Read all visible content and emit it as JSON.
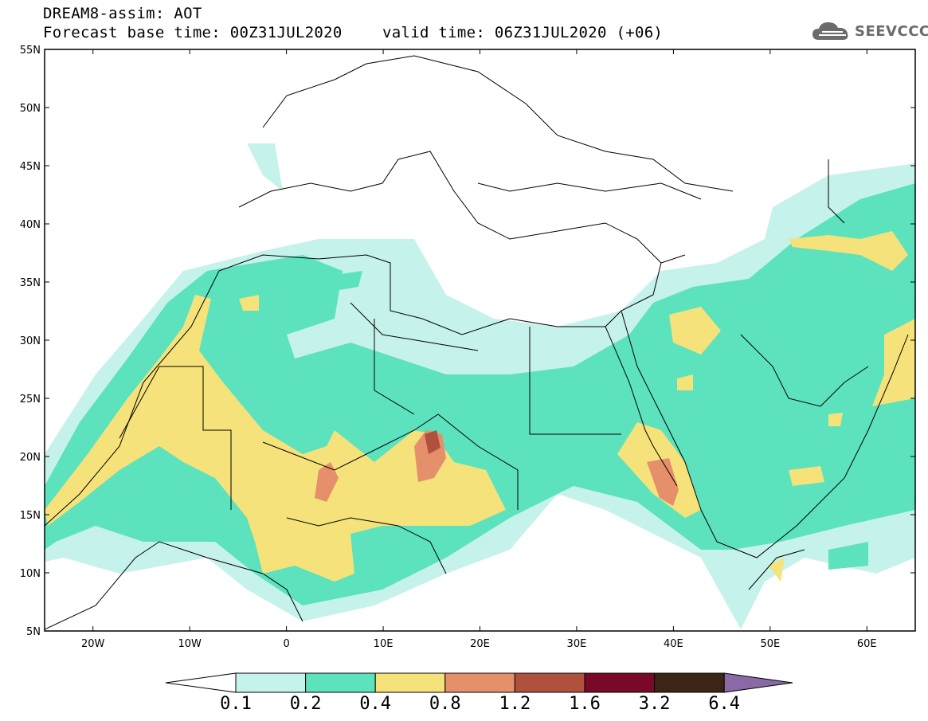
{
  "header": {
    "title": "DREAM8-assim: AOT",
    "base_time": "Forecast base time: 00Z31JUL2020",
    "valid_time": "valid time: 06Z31JUL2020 (+06)"
  },
  "logo": {
    "text": "SEEVCCC",
    "icon": "cloud-icon"
  },
  "axes": {
    "lat_ticks": [
      "55N",
      "50N",
      "45N",
      "40N",
      "35N",
      "30N",
      "25N",
      "20N",
      "15N",
      "10N",
      "5N"
    ],
    "lon_ticks": [
      "20W",
      "10W",
      "0",
      "10E",
      "20E",
      "30E",
      "40E",
      "50E",
      "60E"
    ],
    "lat_range": [
      5,
      55
    ],
    "lon_range": [
      -25,
      65
    ]
  },
  "colorbar": {
    "levels": [
      "0.1",
      "0.2",
      "0.4",
      "0.8",
      "1.2",
      "1.6",
      "3.2",
      "6.4"
    ],
    "colors": [
      "#c6f2ec",
      "#5ce2bd",
      "#f5e27a",
      "#e58f6b",
      "#b0513d",
      "#7a0828",
      "#3d2516"
    ],
    "under_color": "#ffffff",
    "over_color": "#8a6aa6"
  }
}
